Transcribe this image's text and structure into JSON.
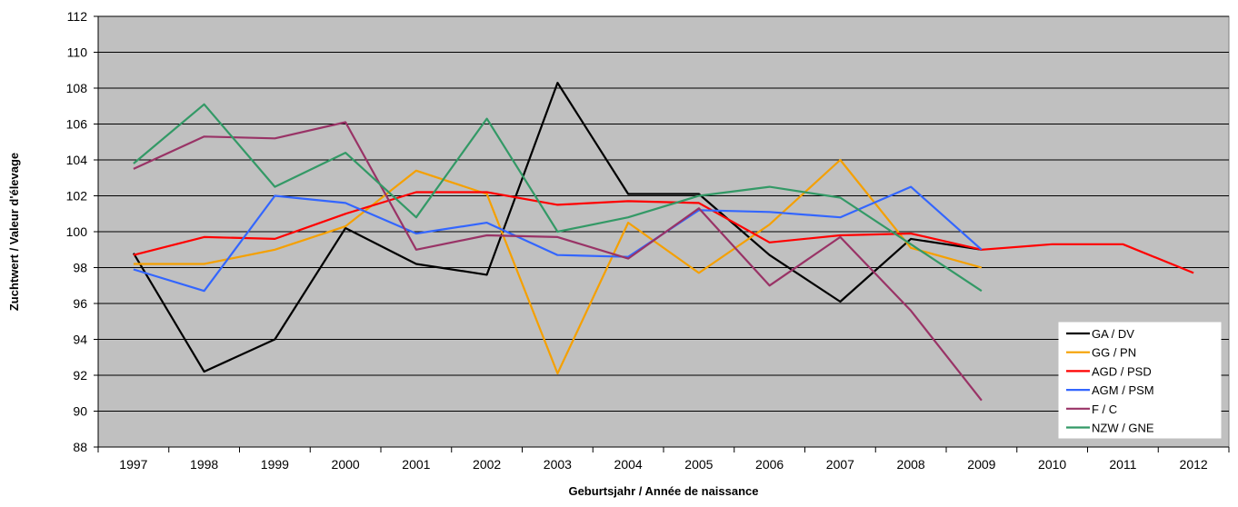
{
  "chart_data": {
    "type": "line",
    "title": "",
    "xlabel": "Geburtsjahr / Année de naissance",
    "ylabel": "Zuchtwert / Valeur d'élevage",
    "ylim": [
      88,
      112
    ],
    "ystep": 2,
    "grid": true,
    "legend_position": "bottom-right",
    "plot_background": "#c0c0c0",
    "categories": [
      "1997",
      "1998",
      "1999",
      "2000",
      "2001",
      "2002",
      "2003",
      "2004",
      "2005",
      "2006",
      "2007",
      "2008",
      "2009",
      "2010",
      "2011",
      "2012"
    ],
    "series": [
      {
        "name": "GA / DV",
        "color": "#000000",
        "values": [
          98.8,
          92.2,
          94.0,
          100.2,
          98.2,
          97.6,
          108.3,
          102.1,
          102.1,
          98.7,
          96.1,
          99.6,
          99.0,
          null,
          null,
          null
        ]
      },
      {
        "name": "GG / PN",
        "color": "#f5a000",
        "values": [
          98.2,
          98.2,
          99.0,
          100.3,
          103.4,
          102.1,
          92.1,
          100.5,
          97.7,
          100.4,
          104.0,
          99.1,
          98.0,
          null,
          null,
          null
        ]
      },
      {
        "name": "AGD / PSD",
        "color": "#ff0000",
        "values": [
          98.7,
          99.7,
          99.6,
          101.0,
          102.2,
          102.2,
          101.5,
          101.7,
          101.6,
          99.4,
          99.8,
          99.9,
          99.0,
          99.3,
          99.3,
          97.7
        ]
      },
      {
        "name": "AGM / PSM",
        "color": "#3366ff",
        "values": [
          97.9,
          96.7,
          102.0,
          101.6,
          99.9,
          100.5,
          98.7,
          98.6,
          101.2,
          101.1,
          100.8,
          102.5,
          99.0,
          null,
          null,
          null
        ]
      },
      {
        "name": "F / C",
        "color": "#993366",
        "values": [
          103.5,
          105.3,
          105.2,
          106.1,
          99.0,
          99.8,
          99.7,
          98.5,
          101.3,
          97.0,
          99.7,
          95.6,
          90.6,
          null,
          null,
          null
        ]
      },
      {
        "name": "NZW / GNE",
        "color": "#339966",
        "values": [
          103.8,
          107.1,
          102.5,
          104.4,
          100.8,
          106.3,
          100.0,
          100.8,
          102.0,
          102.5,
          101.9,
          99.3,
          96.7,
          null,
          null,
          null
        ]
      }
    ]
  }
}
